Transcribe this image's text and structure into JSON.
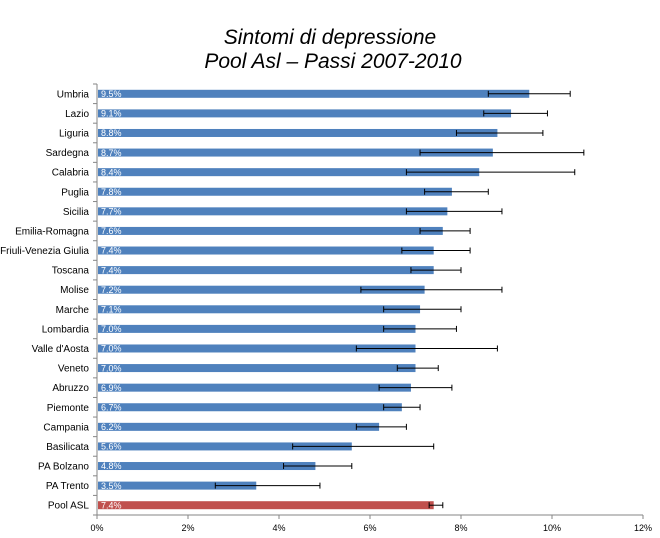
{
  "chart_data": {
    "type": "bar",
    "orientation": "horizontal",
    "title_line1": "Sintomi di depressione",
    "title_line2": "Pool Asl – Passi 2007-2010",
    "xlabel": "",
    "ylabel": "",
    "xlim": [
      0,
      12
    ],
    "ticks": [
      0,
      2,
      4,
      6,
      8,
      10,
      12
    ],
    "tick_labels": [
      "0%",
      "2%",
      "4%",
      "6%",
      "8%",
      "10%",
      "12%"
    ],
    "grid": false,
    "series_color": "#4f81bd",
    "highlight_color": "#c0504d",
    "categories": [
      {
        "name": "Umbria",
        "value": 9.5,
        "label": "9.5%",
        "ci_low": 8.6,
        "ci_high": 10.4
      },
      {
        "name": "Lazio",
        "value": 9.1,
        "label": "9.1%",
        "ci_low": 8.5,
        "ci_high": 9.9
      },
      {
        "name": "Liguria",
        "value": 8.8,
        "label": "8.8%",
        "ci_low": 7.9,
        "ci_high": 9.8
      },
      {
        "name": "Sardegna",
        "value": 8.7,
        "label": "8.7%",
        "ci_low": 7.1,
        "ci_high": 10.7
      },
      {
        "name": "Calabria",
        "value": 8.4,
        "label": "8.4%",
        "ci_low": 6.8,
        "ci_high": 10.5
      },
      {
        "name": "Puglia",
        "value": 7.8,
        "label": "7.8%",
        "ci_low": 7.2,
        "ci_high": 8.6
      },
      {
        "name": "Sicilia",
        "value": 7.7,
        "label": "7.7%",
        "ci_low": 6.8,
        "ci_high": 8.9
      },
      {
        "name": "Emilia-Romagna",
        "value": 7.6,
        "label": "7.6%",
        "ci_low": 7.1,
        "ci_high": 8.2
      },
      {
        "name": "Friuli-Venezia Giulia",
        "value": 7.4,
        "label": "7.4%",
        "ci_low": 6.7,
        "ci_high": 8.2
      },
      {
        "name": "Toscana",
        "value": 7.4,
        "label": "7.4%",
        "ci_low": 6.9,
        "ci_high": 8.0
      },
      {
        "name": "Molise",
        "value": 7.2,
        "label": "7.2%",
        "ci_low": 5.8,
        "ci_high": 8.9
      },
      {
        "name": "Marche",
        "value": 7.1,
        "label": "7.1%",
        "ci_low": 6.3,
        "ci_high": 8.0
      },
      {
        "name": "Lombardia",
        "value": 7.0,
        "label": "7.0%",
        "ci_low": 6.3,
        "ci_high": 7.9
      },
      {
        "name": "Valle d'Aosta",
        "value": 7.0,
        "label": "7.0%",
        "ci_low": 5.7,
        "ci_high": 8.8
      },
      {
        "name": "Veneto",
        "value": 7.0,
        "label": "7.0%",
        "ci_low": 6.6,
        "ci_high": 7.5
      },
      {
        "name": "Abruzzo",
        "value": 6.9,
        "label": "6.9%",
        "ci_low": 6.2,
        "ci_high": 7.8
      },
      {
        "name": "Piemonte",
        "value": 6.7,
        "label": "6.7%",
        "ci_low": 6.3,
        "ci_high": 7.1
      },
      {
        "name": "Campania",
        "value": 6.2,
        "label": "6.2%",
        "ci_low": 5.7,
        "ci_high": 6.8
      },
      {
        "name": "Basilicata",
        "value": 5.6,
        "label": "5.6%",
        "ci_low": 4.3,
        "ci_high": 7.4
      },
      {
        "name": "PA Bolzano",
        "value": 4.8,
        "label": "4.8%",
        "ci_low": 4.1,
        "ci_high": 5.6
      },
      {
        "name": "PA Trento",
        "value": 3.5,
        "label": "3.5%",
        "ci_low": 2.6,
        "ci_high": 4.9
      },
      {
        "name": "Pool ASL",
        "value": 7.4,
        "label": "7.4%",
        "ci_low": 7.3,
        "ci_high": 7.6,
        "highlight": true
      }
    ]
  }
}
